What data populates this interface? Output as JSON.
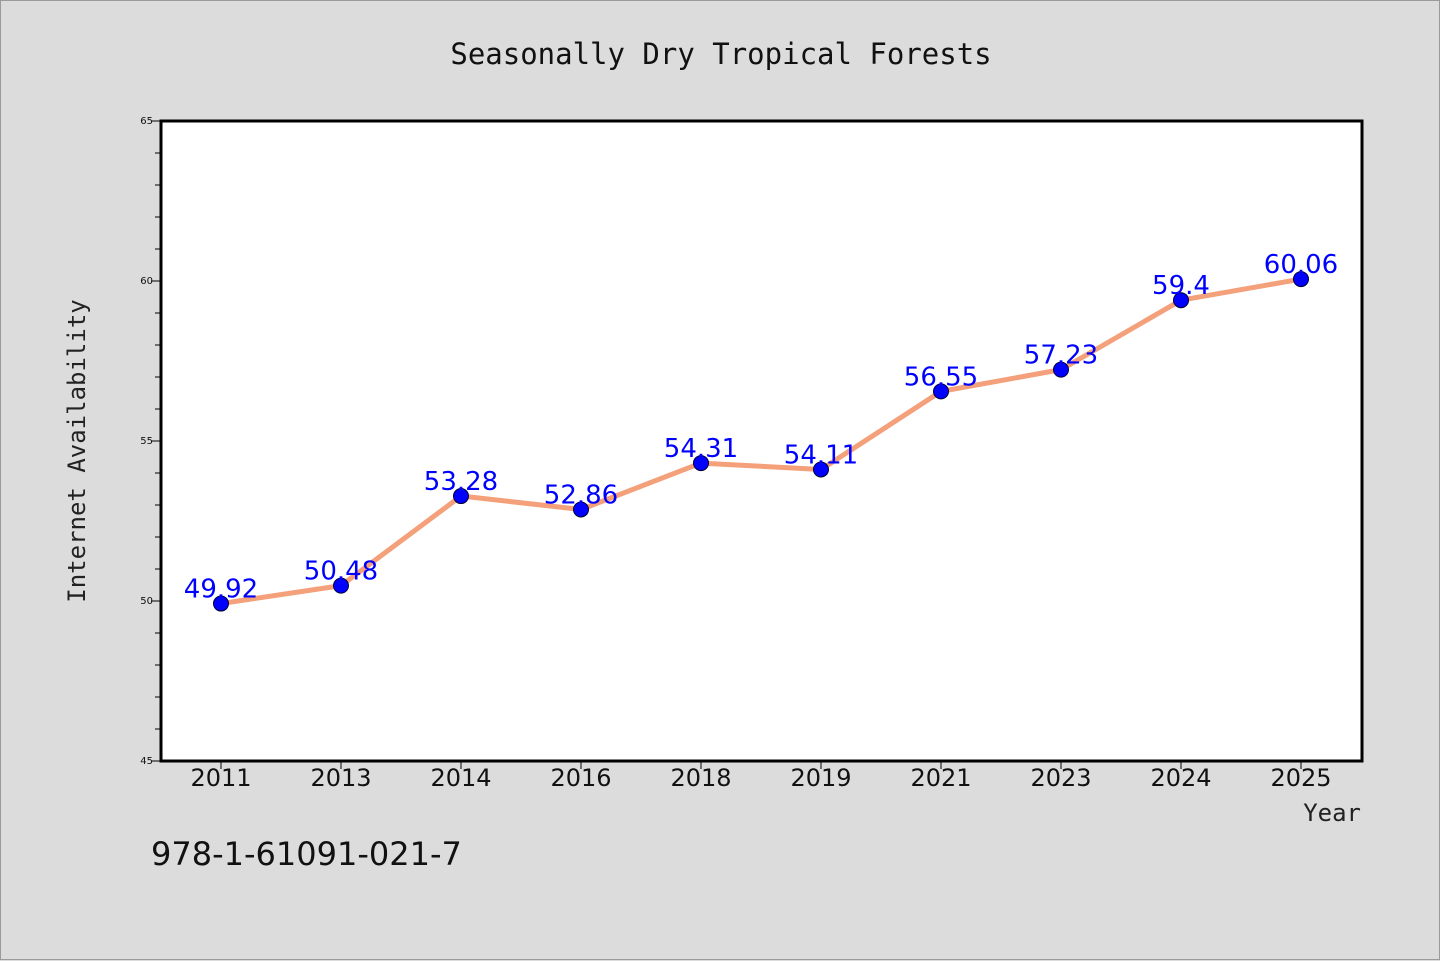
{
  "chart_data": {
    "type": "line",
    "title": "Seasonally Dry Tropical Forests",
    "xlabel": "Year",
    "ylabel": "Internet Availability",
    "categories": [
      "2011",
      "2013",
      "2014",
      "2016",
      "2018",
      "2019",
      "2021",
      "2023",
      "2024",
      "2025"
    ],
    "series": [
      {
        "values": [
          49.92,
          50.48,
          53.28,
          52.86,
          54.31,
          54.11,
          56.55,
          57.23,
          59.4,
          60.06
        ],
        "labels": [
          "49.92",
          "50.48",
          "53.28",
          "52.86",
          "54.31",
          "54.11",
          "56.55",
          "57.23",
          "59.4",
          "60.06"
        ]
      }
    ],
    "ylim": [
      45,
      65
    ],
    "yticks": [
      "45",
      "50",
      "55",
      "60",
      "65"
    ],
    "grid": false,
    "legend": "none"
  },
  "footnote": "978-1-61091-021-7",
  "colors": {
    "background": "#dcdcdc",
    "plot_area": "#ffffff",
    "line": "#f4a07a",
    "marker": "#0000ff",
    "data_label": "#0000ff"
  }
}
